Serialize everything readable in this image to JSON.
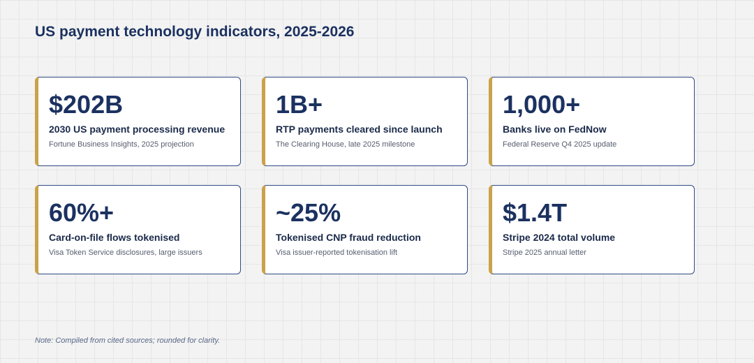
{
  "header": {
    "title": "US payment technology indicators, 2025-2026"
  },
  "cards": [
    {
      "value": "$202B",
      "label": "2030 US payment processing revenue",
      "source": "Fortune Business Insights, 2025 projection"
    },
    {
      "value": "1B+",
      "label": "RTP payments cleared since launch",
      "source": "The Clearing House, late 2025 milestone"
    },
    {
      "value": "1,000+",
      "label": "Banks live on FedNow",
      "source": "Federal Reserve Q4 2025 update"
    },
    {
      "value": "60%+",
      "label": "Card-on-file flows tokenised",
      "source": "Visa Token Service disclosures, large issuers"
    },
    {
      "value": "~25%",
      "label": "Tokenised CNP fraud reduction",
      "source": "Visa issuer-reported tokenisation lift"
    },
    {
      "value": "$1.4T",
      "label": "Stripe 2024 total volume",
      "source": "Stripe 2025 annual letter"
    }
  ],
  "footer": {
    "note": "Note: Compiled from cited sources; rounded for clarity."
  }
}
